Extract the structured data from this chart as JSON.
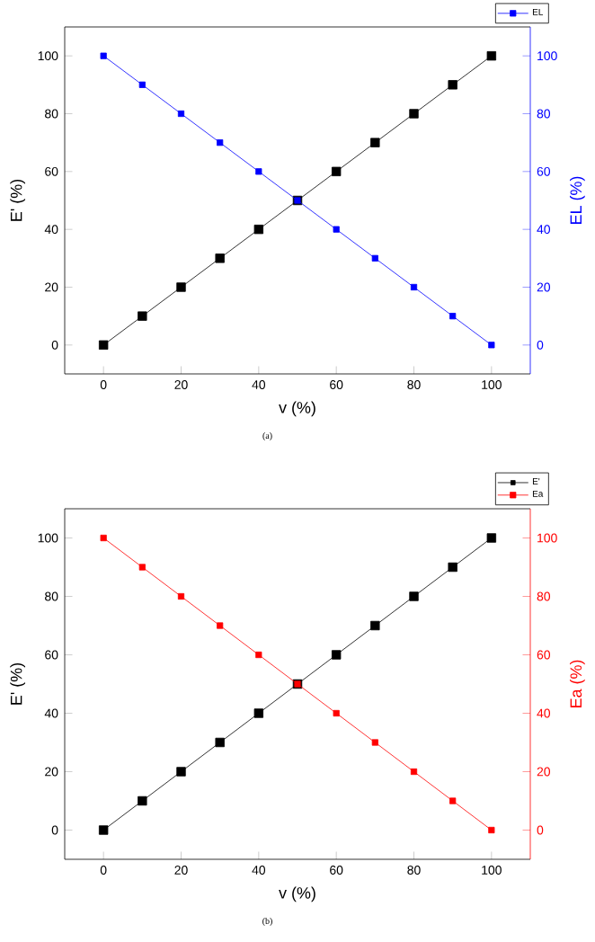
{
  "chart_data": [
    {
      "type": "line",
      "xlabel": "v (%)",
      "ylabel": "E' (%)",
      "y2label": "EL (%)",
      "x": [
        0,
        10,
        20,
        30,
        40,
        50,
        60,
        70,
        80,
        90,
        100
      ],
      "xlim": [
        -10,
        110
      ],
      "ylim": [
        -10,
        110
      ],
      "y2lim": [
        -10,
        110
      ],
      "xticks": [
        0,
        20,
        40,
        60,
        80,
        100
      ],
      "yticks": [
        0,
        20,
        40,
        60,
        80,
        100
      ],
      "y2ticks": [
        0,
        20,
        40,
        60,
        80,
        100
      ],
      "series": [
        {
          "color": "#000000",
          "values": [
            0,
            10,
            20,
            30,
            40,
            50,
            60,
            70,
            80,
            90,
            100
          ]
        },
        {
          "name": "EL",
          "color": "#0000ff",
          "axis": "y2",
          "values": [
            100,
            90,
            80,
            70,
            60,
            50,
            40,
            30,
            20,
            10,
            0
          ]
        }
      ],
      "marker": "square",
      "line_style": "solid",
      "legend": "top right",
      "annotations": [
        "(a)"
      ]
    },
    {
      "type": "line",
      "xlabel": "v (%)",
      "ylabel": "E' (%)",
      "y2label": "Ea (%)",
      "x": [
        0,
        10,
        20,
        30,
        40,
        50,
        60,
        70,
        80,
        90,
        100
      ],
      "xlim": [
        -10,
        110
      ],
      "ylim": [
        -10,
        110
      ],
      "y2lim": [
        -10,
        110
      ],
      "xticks": [
        0,
        20,
        40,
        60,
        80,
        100
      ],
      "yticks": [
        0,
        20,
        40,
        60,
        80,
        100
      ],
      "y2ticks": [
        0,
        20,
        40,
        60,
        80,
        100
      ],
      "series": [
        {
          "name": "E'",
          "color": "#000000",
          "values": [
            0,
            10,
            20,
            30,
            40,
            50,
            60,
            70,
            80,
            90,
            100
          ]
        },
        {
          "name": "Ea",
          "color": "#ff0000",
          "axis": "y2",
          "values": [
            100,
            90,
            80,
            70,
            60,
            50,
            40,
            30,
            20,
            10,
            0
          ]
        }
      ],
      "marker": "square",
      "line_style": "solid",
      "legend": "top right",
      "annotations": [
        "(b)"
      ]
    }
  ]
}
